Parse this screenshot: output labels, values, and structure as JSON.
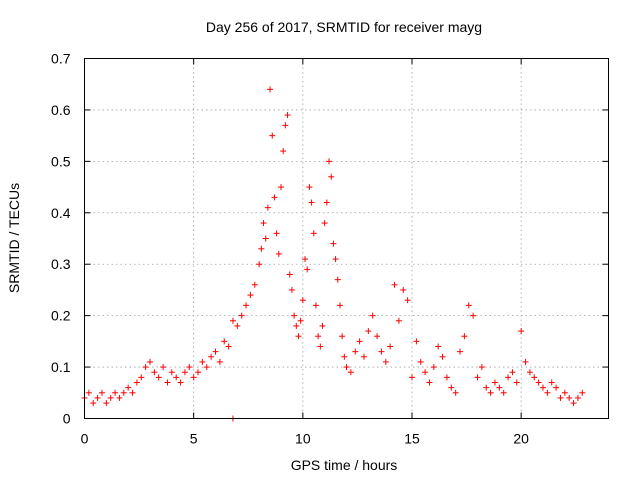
{
  "chart_data": {
    "type": "scatter",
    "title": "Day 256 of 2017, SRMTID for receiver mayg",
    "xlabel": "GPS time / hours",
    "ylabel": "SRMTID / TECUs",
    "xlim": [
      0,
      24
    ],
    "ylim": [
      0,
      0.7
    ],
    "xticks": [
      0,
      5,
      10,
      15,
      20
    ],
    "xtick_labels": [
      "0",
      "5",
      "10",
      "15",
      "20"
    ],
    "yticks": [
      0,
      0.1,
      0.2,
      0.3,
      0.4,
      0.5,
      0.6,
      0.7
    ],
    "ytick_labels": [
      "0",
      "0.1",
      "0.2",
      "0.3",
      "0.4",
      "0.5",
      "0.6",
      "0.7"
    ],
    "grid": true,
    "marker": "+",
    "color": "#ff0000",
    "series": [
      {
        "name": "SRMTID",
        "x": [
          0.0,
          0.2,
          0.4,
          0.6,
          0.8,
          1.0,
          1.2,
          1.4,
          1.6,
          1.8,
          2.0,
          2.2,
          2.4,
          2.6,
          2.8,
          3.0,
          3.2,
          3.4,
          3.6,
          3.8,
          4.0,
          4.2,
          4.4,
          4.6,
          4.8,
          5.0,
          5.2,
          5.4,
          5.6,
          5.8,
          6.0,
          6.2,
          6.4,
          6.6,
          6.8,
          7.0,
          7.2,
          7.4,
          7.6,
          7.8,
          8.0,
          8.1,
          8.2,
          8.3,
          8.4,
          8.5,
          8.6,
          8.7,
          8.8,
          8.9,
          9.0,
          9.1,
          9.2,
          9.3,
          9.4,
          9.5,
          9.6,
          9.7,
          9.8,
          9.9,
          10.0,
          10.1,
          10.2,
          10.3,
          10.4,
          10.5,
          10.6,
          10.7,
          10.8,
          10.9,
          11.0,
          11.1,
          11.2,
          11.3,
          11.4,
          11.5,
          11.6,
          11.7,
          11.8,
          11.9,
          12.0,
          12.2,
          12.4,
          12.6,
          12.8,
          13.0,
          13.2,
          13.4,
          13.6,
          13.8,
          14.0,
          14.2,
          14.4,
          14.6,
          14.8,
          15.0,
          15.2,
          15.4,
          15.6,
          15.8,
          16.0,
          16.2,
          16.4,
          16.6,
          16.8,
          17.0,
          17.2,
          17.4,
          17.6,
          17.8,
          18.0,
          18.2,
          18.4,
          18.6,
          18.8,
          19.0,
          19.2,
          19.4,
          19.6,
          19.8,
          20.0,
          20.2,
          20.4,
          20.6,
          20.8,
          21.0,
          21.2,
          21.4,
          21.6,
          21.8,
          22.0,
          22.2,
          22.4,
          22.6,
          22.8,
          6.8
        ],
        "y": [
          0.04,
          0.05,
          0.03,
          0.04,
          0.05,
          0.03,
          0.04,
          0.05,
          0.04,
          0.05,
          0.06,
          0.05,
          0.07,
          0.08,
          0.1,
          0.11,
          0.09,
          0.08,
          0.1,
          0.07,
          0.09,
          0.08,
          0.07,
          0.09,
          0.1,
          0.08,
          0.09,
          0.11,
          0.1,
          0.12,
          0.13,
          0.11,
          0.15,
          0.14,
          0.19,
          0.18,
          0.2,
          0.22,
          0.24,
          0.26,
          0.3,
          0.33,
          0.38,
          0.35,
          0.41,
          0.64,
          0.55,
          0.43,
          0.36,
          0.32,
          0.45,
          0.52,
          0.57,
          0.59,
          0.28,
          0.25,
          0.2,
          0.18,
          0.16,
          0.19,
          0.23,
          0.31,
          0.29,
          0.45,
          0.42,
          0.36,
          0.22,
          0.16,
          0.14,
          0.18,
          0.38,
          0.42,
          0.5,
          0.47,
          0.34,
          0.31,
          0.27,
          0.22,
          0.16,
          0.12,
          0.1,
          0.09,
          0.13,
          0.15,
          0.12,
          0.17,
          0.2,
          0.16,
          0.13,
          0.11,
          0.14,
          0.26,
          0.19,
          0.25,
          0.23,
          0.08,
          0.15,
          0.11,
          0.09,
          0.07,
          0.1,
          0.14,
          0.12,
          0.08,
          0.06,
          0.05,
          0.13,
          0.16,
          0.22,
          0.2,
          0.08,
          0.1,
          0.06,
          0.05,
          0.07,
          0.06,
          0.05,
          0.08,
          0.09,
          0.07,
          0.17,
          0.11,
          0.09,
          0.08,
          0.07,
          0.06,
          0.05,
          0.07,
          0.06,
          0.04,
          0.05,
          0.04,
          0.03,
          0.04,
          0.05,
          0.0
        ]
      }
    ]
  }
}
